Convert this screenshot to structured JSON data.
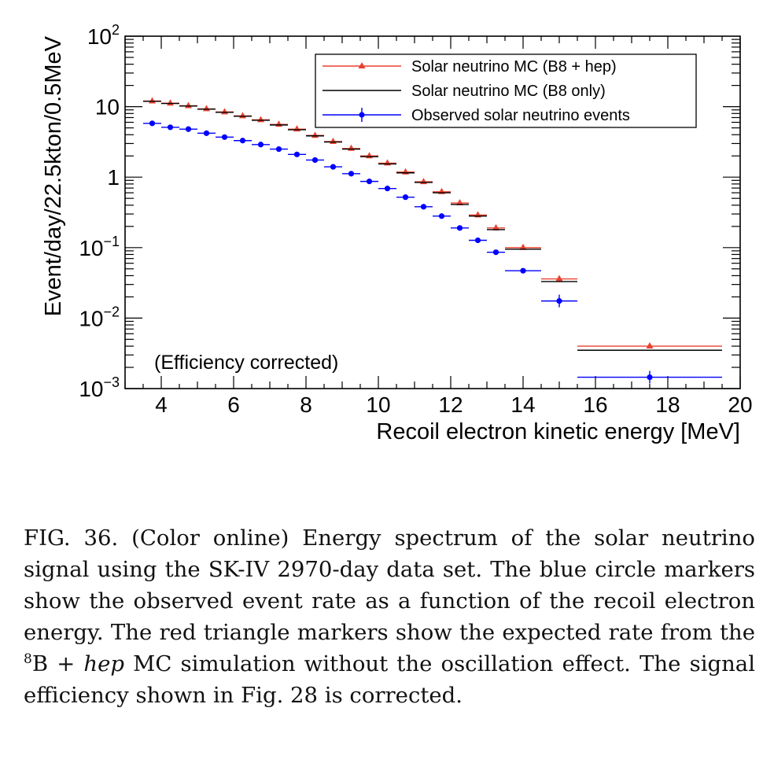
{
  "chart_data": {
    "type": "scatter",
    "xlabel": "Recoil electron kinetic energy [MeV]",
    "ylabel": "Event/day/22.5kton/0.5MeV",
    "xlim": [
      3,
      20
    ],
    "ylim": [
      0.001,
      100
    ],
    "yscale": "log",
    "x_ticks": [
      4,
      6,
      8,
      10,
      12,
      14,
      16,
      18,
      20
    ],
    "y_ticks": [
      {
        "value": 100,
        "base": "10",
        "exp": "2"
      },
      {
        "value": 10,
        "base": "10",
        "exp": ""
      },
      {
        "value": 1,
        "base": "1",
        "exp": ""
      },
      {
        "value": 0.1,
        "base": "10",
        "exp": "−1"
      },
      {
        "value": 0.01,
        "base": "10",
        "exp": "−2"
      },
      {
        "value": 0.001,
        "base": "10",
        "exp": "−3"
      }
    ],
    "annotation": "(Efficiency corrected)",
    "legend_position": "top-right",
    "colors": {
      "red": "#e8412f",
      "black": "#000000",
      "blue": "#0000ff"
    },
    "bins": [
      [
        3.5,
        4.0
      ],
      [
        4.0,
        4.5
      ],
      [
        4.5,
        5.0
      ],
      [
        5.0,
        5.5
      ],
      [
        5.5,
        6.0
      ],
      [
        6.0,
        6.5
      ],
      [
        6.5,
        7.0
      ],
      [
        7.0,
        7.5
      ],
      [
        7.5,
        8.0
      ],
      [
        8.0,
        8.5
      ],
      [
        8.5,
        9.0
      ],
      [
        9.0,
        9.5
      ],
      [
        9.5,
        10.0
      ],
      [
        10.0,
        10.5
      ],
      [
        10.5,
        11.0
      ],
      [
        11.0,
        11.5
      ],
      [
        11.5,
        12.0
      ],
      [
        12.0,
        12.5
      ],
      [
        12.5,
        13.0
      ],
      [
        13.0,
        13.5
      ],
      [
        13.5,
        14.5
      ],
      [
        14.5,
        15.5
      ],
      [
        15.5,
        19.5
      ]
    ],
    "series": [
      {
        "name": "Solar neutrino MC (B8 + hep)",
        "marker": "triangle",
        "color": "#e8412f",
        "x": [
          3.75,
          4.25,
          4.75,
          5.25,
          5.75,
          6.25,
          6.75,
          7.25,
          7.75,
          8.25,
          8.75,
          9.25,
          9.75,
          10.25,
          10.75,
          11.25,
          11.75,
          12.25,
          12.75,
          13.25,
          14.0,
          15.0,
          17.5
        ],
        "values": [
          12.0,
          11.2,
          10.3,
          9.3,
          8.4,
          7.4,
          6.5,
          5.6,
          4.8,
          3.9,
          3.2,
          2.55,
          2.0,
          1.58,
          1.18,
          0.86,
          0.62,
          0.43,
          0.29,
          0.19,
          0.1,
          0.036,
          0.004
        ]
      },
      {
        "name": "Solar neutrino MC (B8 only)",
        "marker": "line",
        "color": "#000000",
        "x": [
          3.75,
          4.25,
          4.75,
          5.25,
          5.75,
          6.25,
          6.75,
          7.25,
          7.75,
          8.25,
          8.75,
          9.25,
          9.75,
          10.25,
          10.75,
          11.25,
          11.75,
          12.25,
          12.75,
          13.25,
          14.0,
          15.0,
          17.5
        ],
        "values": [
          11.9,
          11.1,
          10.2,
          9.2,
          8.3,
          7.3,
          6.4,
          5.5,
          4.7,
          3.85,
          3.15,
          2.5,
          1.95,
          1.54,
          1.15,
          0.84,
          0.6,
          0.41,
          0.28,
          0.18,
          0.095,
          0.033,
          0.0035
        ]
      },
      {
        "name": "Observed solar neutrino events",
        "marker": "circle",
        "color": "#0000ff",
        "x": [
          3.75,
          4.25,
          4.75,
          5.25,
          5.75,
          6.25,
          6.75,
          7.25,
          7.75,
          8.25,
          8.75,
          9.25,
          9.75,
          10.25,
          10.75,
          11.25,
          11.75,
          12.25,
          12.75,
          13.25,
          14.0,
          15.0,
          17.5
        ],
        "values": [
          5.8,
          5.1,
          4.8,
          4.2,
          3.7,
          3.3,
          2.9,
          2.5,
          2.1,
          1.75,
          1.4,
          1.12,
          0.87,
          0.69,
          0.52,
          0.38,
          0.28,
          0.19,
          0.127,
          0.086,
          0.047,
          0.0175,
          0.00145
        ]
      }
    ]
  },
  "caption": {
    "fig_label": "FIG. 36.",
    "part1": " (Color online) Energy spectrum of the solar neutrino signal using the SK-IV 2970-day data set.  The blue circle markers show the observed event rate as a function of the recoil electron energy.  The red triangle markers show the expected rate from the ",
    "sup": "8",
    "b": "B + ",
    "hep": "hep",
    "part2": " MC simulation without the oscillation effect.  The signal efficiency shown in Fig. 28 is corrected."
  }
}
